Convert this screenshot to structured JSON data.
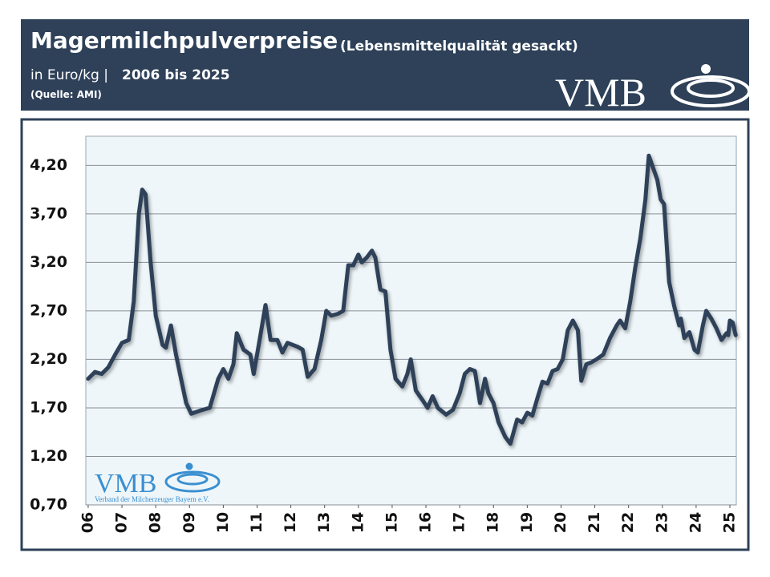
{
  "chart_data": {
    "type": "line",
    "title": "Magermilchpulverpreise",
    "title_note": "(Lebensmittelqualität gesackt)",
    "unit": "in Euro/kg |",
    "period": "2006 bis 2025",
    "source": "(Quelle: AMI)",
    "annotations": [
      "VMB",
      "VMB",
      "Verband der Milcherzeuger Bayern e.V."
    ],
    "color": "#2e4159",
    "grid": true,
    "xlim": [
      2005.93,
      2025.19
    ],
    "xticks": [
      {
        "value": 2006,
        "label": "06"
      },
      {
        "value": 2007,
        "label": "07"
      },
      {
        "value": 2008,
        "label": "08"
      },
      {
        "value": 2009,
        "label": "09"
      },
      {
        "value": 2010,
        "label": "10"
      },
      {
        "value": 2011,
        "label": "11"
      },
      {
        "value": 2012,
        "label": "12"
      },
      {
        "value": 2013,
        "label": "13"
      },
      {
        "value": 2014,
        "label": "14"
      },
      {
        "value": 2015,
        "label": "15"
      },
      {
        "value": 2016,
        "label": "16"
      },
      {
        "value": 2017,
        "label": "17"
      },
      {
        "value": 2018,
        "label": "18"
      },
      {
        "value": 2019,
        "label": "19"
      },
      {
        "value": 2020,
        "label": "20"
      },
      {
        "value": 2021,
        "label": "21"
      },
      {
        "value": 2022,
        "label": "22"
      },
      {
        "value": 2023,
        "label": "23"
      },
      {
        "value": 2024,
        "label": "24"
      },
      {
        "value": 2025,
        "label": "25"
      }
    ],
    "ylim": [
      0.7,
      4.5
    ],
    "yticks": [
      {
        "value": 0.7,
        "label": "0,70"
      },
      {
        "value": 1.2,
        "label": "1,20"
      },
      {
        "value": 1.7,
        "label": "1,70"
      },
      {
        "value": 2.2,
        "label": "2,20"
      },
      {
        "value": 2.7,
        "label": "2,70"
      },
      {
        "value": 3.2,
        "label": "3,20"
      },
      {
        "value": 3.7,
        "label": "3,70"
      },
      {
        "value": 4.2,
        "label": "4,20"
      }
    ],
    "x": [
      2006.0,
      2006.2,
      2006.4,
      2006.6,
      2006.8,
      2007.0,
      2007.2,
      2007.35,
      2007.5,
      2007.6,
      2007.7,
      2007.85,
      2008.0,
      2008.2,
      2008.3,
      2008.45,
      2008.6,
      2008.75,
      2008.9,
      2009.05,
      2009.3,
      2009.6,
      2009.85,
      2010.0,
      2010.15,
      2010.3,
      2010.4,
      2010.6,
      2010.8,
      2010.9,
      2011.1,
      2011.25,
      2011.4,
      2011.6,
      2011.75,
      2011.9,
      2012.2,
      2012.35,
      2012.5,
      2012.7,
      2012.9,
      2013.05,
      2013.2,
      2013.4,
      2013.55,
      2013.7,
      2013.85,
      2014.0,
      2014.1,
      2014.25,
      2014.4,
      2014.5,
      2014.65,
      2014.8,
      2014.95,
      2015.1,
      2015.3,
      2015.45,
      2015.55,
      2015.7,
      2015.9,
      2016.05,
      2016.2,
      2016.35,
      2016.6,
      2016.8,
      2017.0,
      2017.15,
      2017.3,
      2017.45,
      2017.6,
      2017.75,
      2017.85,
      2018.0,
      2018.15,
      2018.35,
      2018.5,
      2018.7,
      2018.85,
      2019.0,
      2019.15,
      2019.3,
      2019.45,
      2019.6,
      2019.75,
      2019.9,
      2020.05,
      2020.2,
      2020.35,
      2020.5,
      2020.6,
      2020.75,
      2020.9,
      2021.05,
      2021.25,
      2021.45,
      2021.65,
      2021.75,
      2021.9,
      2022.05,
      2022.2,
      2022.35,
      2022.5,
      2022.6,
      2022.75,
      2022.85,
      2022.95,
      2023.05,
      2023.2,
      2023.35,
      2023.5,
      2023.55,
      2023.65,
      2023.8,
      2023.95,
      2024.05,
      2024.2,
      2024.3,
      2024.45,
      2024.6,
      2024.75,
      2024.9,
      2024.95,
      2025.0,
      2025.08,
      2025.17
    ],
    "values": [
      2.0,
      2.07,
      2.05,
      2.12,
      2.25,
      2.37,
      2.4,
      2.8,
      3.7,
      3.95,
      3.9,
      3.2,
      2.65,
      2.35,
      2.32,
      2.55,
      2.25,
      2.0,
      1.75,
      1.64,
      1.67,
      1.7,
      2.0,
      2.1,
      2.0,
      2.15,
      2.47,
      2.3,
      2.25,
      2.05,
      2.45,
      2.76,
      2.4,
      2.4,
      2.27,
      2.37,
      2.33,
      2.3,
      2.02,
      2.1,
      2.4,
      2.7,
      2.65,
      2.67,
      2.7,
      3.17,
      3.17,
      3.28,
      3.2,
      3.25,
      3.32,
      3.25,
      2.92,
      2.9,
      2.3,
      2.0,
      1.92,
      2.05,
      2.2,
      1.88,
      1.78,
      1.7,
      1.82,
      1.7,
      1.63,
      1.68,
      1.85,
      2.05,
      2.1,
      2.08,
      1.75,
      2.0,
      1.85,
      1.75,
      1.55,
      1.4,
      1.33,
      1.58,
      1.55,
      1.65,
      1.62,
      1.8,
      1.97,
      1.95,
      2.08,
      2.1,
      2.2,
      2.5,
      2.6,
      2.5,
      1.98,
      2.15,
      2.17,
      2.2,
      2.25,
      2.42,
      2.55,
      2.6,
      2.52,
      2.8,
      3.15,
      3.45,
      3.85,
      4.3,
      4.15,
      4.05,
      3.85,
      3.8,
      3.0,
      2.75,
      2.55,
      2.62,
      2.42,
      2.48,
      2.3,
      2.27,
      2.55,
      2.7,
      2.62,
      2.52,
      2.4,
      2.47,
      2.45,
      2.6,
      2.58,
      2.45
    ]
  }
}
